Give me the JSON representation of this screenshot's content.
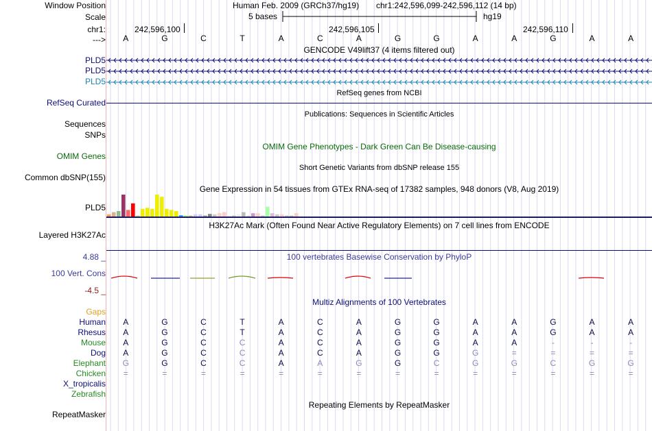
{
  "header": {
    "window_position_label": "Window Position",
    "scale_label": "Scale",
    "chrom_label": "chr1:",
    "arrow_label": "--->",
    "assembly": "Human Feb. 2009 (GRCh37/hg19)",
    "position": "chr1:242,596,099-242,596,112 (14 bp)",
    "scale_text": "5 bases",
    "db": "hg19",
    "coords": [
      "242,596,100",
      "242,596,105",
      "242,596,110"
    ]
  },
  "sequence": [
    "A",
    "G",
    "C",
    "T",
    "A",
    "C",
    "A",
    "G",
    "G",
    "A",
    "A",
    "G",
    "A",
    "A"
  ],
  "gencode": {
    "title": "GENCODE V49lift37 (4 items filtered out)",
    "genes": [
      {
        "label": "PLD5",
        "color": "#0c0c78"
      },
      {
        "label": "PLD5",
        "color": "#0c0c78"
      },
      {
        "label": "PLD5",
        "color": "#1884b8"
      }
    ]
  },
  "refseq": {
    "title": "RefSeq genes from NCBI",
    "label": "RefSeq Curated",
    "color": "#0c0c78"
  },
  "publications": {
    "title": "Publications: Sequences in Scientific Articles",
    "labels": [
      "Sequences",
      "SNPs"
    ]
  },
  "omim": {
    "title": "OMIM Gene Phenotypes - Dark Green Can Be Disease-causing",
    "label": "OMIM Genes",
    "color": "#0b6a0b"
  },
  "dbsnp": {
    "title": "Short Genetic Variants from dbSNP release 155",
    "label": "Common dbSNP(155)"
  },
  "gtex": {
    "title": "Gene Expression in 54 tissues from GTEx RNA-seq of 17382 samples, 948 donors (V8, Aug 2019)",
    "label": "PLD5",
    "bars": [
      {
        "v": 0.1,
        "c": "#ff9966"
      },
      {
        "v": 0.2,
        "c": "#d9b38c"
      },
      {
        "v": 0.25,
        "c": "#8fbc8f"
      },
      {
        "v": 1.0,
        "c": "#993366"
      },
      {
        "v": 0.3,
        "c": "#ff6666"
      },
      {
        "v": 0.6,
        "c": "#ff0000"
      },
      {
        "v": 0.05,
        "c": "#cccccc"
      },
      {
        "v": 0.35,
        "c": "#eeee00"
      },
      {
        "v": 0.4,
        "c": "#eeee00"
      },
      {
        "v": 0.35,
        "c": "#eeee00"
      },
      {
        "v": 1.0,
        "c": "#eeee00"
      },
      {
        "v": 0.9,
        "c": "#eeee00"
      },
      {
        "v": 0.35,
        "c": "#eeee00"
      },
      {
        "v": 0.3,
        "c": "#eeee00"
      },
      {
        "v": 0.25,
        "c": "#eeee00"
      },
      {
        "v": 0.06,
        "c": "#3399ff"
      },
      {
        "v": 0.05,
        "c": "#99ff99"
      },
      {
        "v": 0.05,
        "c": "#cccc99"
      },
      {
        "v": 0.1,
        "c": "#ccccff"
      },
      {
        "v": 0.1,
        "c": "#ccccff"
      },
      {
        "v": 0.05,
        "c": "#aaaaaa"
      },
      {
        "v": 0.12,
        "c": "#888888"
      },
      {
        "v": 0.1,
        "c": "#cccccc"
      },
      {
        "v": 0.15,
        "c": "#ffcccc"
      },
      {
        "v": 0.2,
        "c": "#ffcccc"
      },
      {
        "v": 0.05,
        "c": "#eeeeee"
      },
      {
        "v": 0.05,
        "c": "#cccccc"
      },
      {
        "v": 0.1,
        "c": "#eeeeee"
      },
      {
        "v": 0.2,
        "c": "#bbbbbb"
      },
      {
        "v": 0.05,
        "c": "#dddddd"
      },
      {
        "v": 0.15,
        "c": "#cc99cc"
      },
      {
        "v": 0.15,
        "c": "#ffcccc"
      },
      {
        "v": 0.05,
        "c": "#cccccc"
      },
      {
        "v": 0.45,
        "c": "#aaffaa"
      },
      {
        "v": 0.15,
        "c": "#ddbbdd"
      },
      {
        "v": 0.1,
        "c": "#cccccc"
      },
      {
        "v": 0.1,
        "c": "#ffcccc"
      },
      {
        "v": 0.05,
        "c": "#cccccc"
      },
      {
        "v": 0.05,
        "c": "#cccccc"
      },
      {
        "v": 0.15,
        "c": "#ffcccc"
      }
    ]
  },
  "h3k27ac": {
    "title": "H3K27Ac Mark (Often Found Near Active Regulatory Elements) on 7 cell lines from ENCODE",
    "label": "Layered H3K27Ac"
  },
  "phylop": {
    "title": "100 vertebrates Basewise Conservation by PhyloP",
    "label": "100 Vert. Cons",
    "max_label": "4.88 _",
    "min_label": "-4.5 _",
    "label_color": "#3a3a9a",
    "min_color": "#8b1a1a",
    "segments": [
      {
        "x0": 162,
        "x1": 200,
        "c": "#e00000",
        "h": 3
      },
      {
        "x0": 220,
        "x1": 262,
        "c": "#2222aa",
        "h": 0
      },
      {
        "x0": 277,
        "x1": 313,
        "c": "#9a9a30",
        "h": 0
      },
      {
        "x0": 333,
        "x1": 372,
        "c": "#6a9a20",
        "h": 3
      },
      {
        "x0": 390,
        "x1": 427,
        "c": "#e00000",
        "h": 1
      },
      {
        "x0": 503,
        "x1": 540,
        "c": "#e00000",
        "h": 3
      },
      {
        "x0": 560,
        "x1": 600,
        "c": "#2222aa",
        "h": 0
      },
      {
        "x0": 843,
        "x1": 880,
        "c": "#e00000",
        "h": 1
      }
    ]
  },
  "multiz": {
    "title": "Multiz Alignments of 100 Vertebrates",
    "gaps_label": "Gaps",
    "gaps_color": "#e0a020",
    "species": [
      {
        "name": "Human",
        "color": "#0c0c78",
        "bases": [
          "A",
          "G",
          "C",
          "T",
          "A",
          "C",
          "A",
          "G",
          "G",
          "A",
          "A",
          "G",
          "A",
          "A"
        ]
      },
      {
        "name": "Rhesus",
        "color": "#0c0c78",
        "bases": [
          "A",
          "G",
          "C",
          "T",
          "A",
          "C",
          "A",
          "G",
          "G",
          "A",
          "A",
          "G",
          "A",
          "A"
        ]
      },
      {
        "name": "Mouse",
        "color": "#238b23",
        "bases": [
          "A",
          "G",
          "C",
          "C",
          "A",
          "C",
          "A",
          "G",
          "G",
          "A",
          "A",
          "-",
          "-",
          "-"
        ]
      },
      {
        "name": "Dog",
        "color": "#0c0c78",
        "bases": [
          "A",
          "G",
          "C",
          "C",
          "A",
          "C",
          "A",
          "G",
          "G",
          "G",
          "=",
          "=",
          "=",
          "="
        ]
      },
      {
        "name": "Elephant",
        "color": "#238b23",
        "bases": [
          "G",
          "G",
          "C",
          "C",
          "A",
          "A",
          "G",
          "G",
          "C",
          "G",
          "G",
          "C",
          "G",
          "G"
        ]
      },
      {
        "name": "Chicken",
        "color": "#238b23",
        "bases": [
          "=",
          "=",
          "=",
          "=",
          "=",
          "=",
          "=",
          "=",
          "=",
          "=",
          "=",
          "=",
          "=",
          "="
        ]
      },
      {
        "name": "X_tropicalis",
        "color": "#0c0c78",
        "bases": []
      },
      {
        "name": "Zebrafish",
        "color": "#238b23",
        "bases": []
      }
    ],
    "dim": [
      [
        0,
        0,
        0,
        0,
        0,
        0,
        0,
        0,
        0,
        0,
        0,
        0,
        0,
        0
      ],
      [
        0,
        0,
        0,
        0,
        0,
        0,
        0,
        0,
        0,
        0,
        0,
        0,
        0,
        0
      ],
      [
        0,
        0,
        0,
        1,
        0,
        0,
        0,
        0,
        0,
        0,
        0,
        1,
        1,
        1
      ],
      [
        0,
        0,
        0,
        1,
        0,
        0,
        0,
        0,
        0,
        1,
        1,
        1,
        1,
        1
      ],
      [
        1,
        0,
        0,
        1,
        0,
        1,
        1,
        0,
        1,
        1,
        1,
        1,
        1,
        1
      ],
      [
        1,
        1,
        1,
        1,
        1,
        1,
        1,
        1,
        1,
        1,
        1,
        1,
        1,
        1
      ]
    ]
  },
  "repeatmasker": {
    "title": "Repeating Elements by RepeatMasker",
    "label": "RepeatMasker"
  }
}
